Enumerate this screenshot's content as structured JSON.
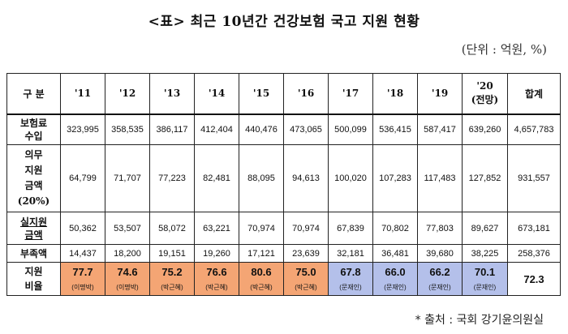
{
  "title": "<표> 최근 10년간 건강보험 국고 지원 현황",
  "unit": "(단위 : 억원, %)",
  "source": "* 출처 : 국회 강기윤의원실",
  "table": {
    "headers": [
      "구 분",
      "'11",
      "'12",
      "'13",
      "'14",
      "'15",
      "'16",
      "'17",
      "'18",
      "'19",
      "'20\n(전망)",
      "합계"
    ],
    "rows": [
      {
        "label": "보험료\n수입",
        "cells": [
          "323,995",
          "358,535",
          "386,117",
          "412,404",
          "440,476",
          "473,065",
          "500,099",
          "536,415",
          "587,417",
          "639,260",
          "4,657,783"
        ]
      },
      {
        "label": "의무\n지원\n금액\n(20%)",
        "cells": [
          "64,799",
          "71,707",
          "77,223",
          "82,481",
          "88,095",
          "94,613",
          "100,020",
          "107,283",
          "117,483",
          "127,852",
          "931,557"
        ]
      },
      {
        "label": "실지원\n금액",
        "cells": [
          "50,362",
          "53,507",
          "58,072",
          "63,221",
          "70,974",
          "70,974",
          "67,839",
          "70,802",
          "77,803",
          "89,627",
          "673,181"
        ]
      },
      {
        "label": "부족액",
        "cells": [
          "14,437",
          "18,200",
          "19,151",
          "19,260",
          "17,121",
          "23,639",
          "32,181",
          "36,481",
          "39,680",
          "38,225",
          "258,376"
        ]
      }
    ],
    "ratio_row": {
      "label": "지원\n비율",
      "cells": [
        {
          "value": "77.7",
          "note": "(이명박)",
          "color": "orange"
        },
        {
          "value": "74.6",
          "note": "(이명박)",
          "color": "orange"
        },
        {
          "value": "75.2",
          "note": "(박근혜)",
          "color": "orange"
        },
        {
          "value": "76.6",
          "note": "(박근혜)",
          "color": "orange"
        },
        {
          "value": "80.6",
          "note": "(박근혜)",
          "color": "orange"
        },
        {
          "value": "75.0",
          "note": "(박근혜)",
          "color": "orange"
        },
        {
          "value": "67.8",
          "note": "(문재인)",
          "color": "blue"
        },
        {
          "value": "66.0",
          "note": "(문재인)",
          "color": "blue"
        },
        {
          "value": "66.2",
          "note": "(문재인)",
          "color": "blue"
        },
        {
          "value": "70.1",
          "note": "(문재인)",
          "color": "blue"
        }
      ],
      "total": "72.3"
    }
  },
  "colors": {
    "orange": "#f4a574",
    "blue": "#b4c0ea"
  }
}
